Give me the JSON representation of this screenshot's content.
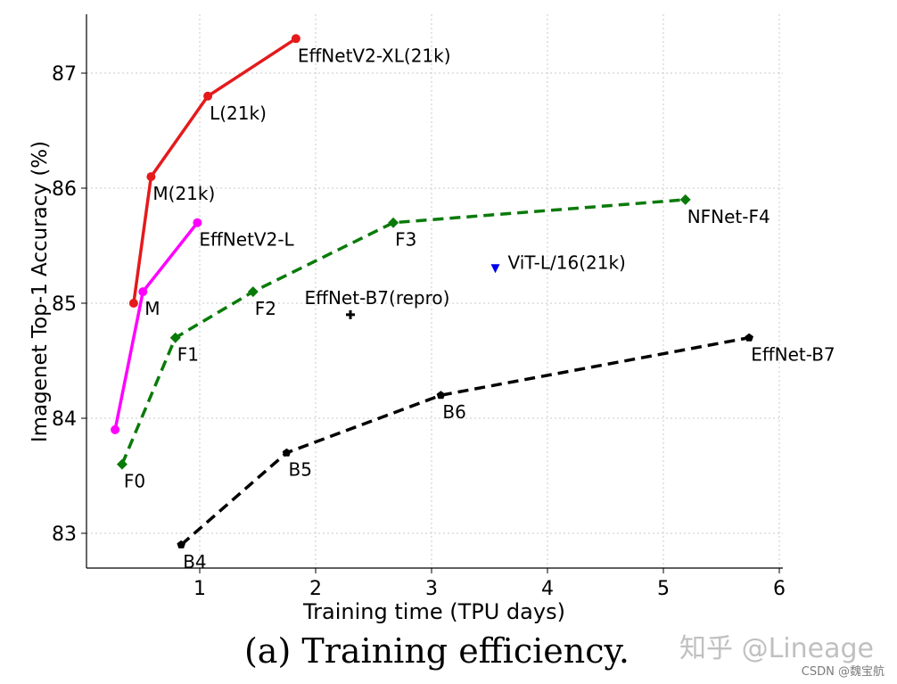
{
  "chart_data": {
    "type": "line",
    "title": "(a) Training efficiency.",
    "xlabel": "Training time (TPU days)",
    "ylabel": "Imagenet Top-1 Accuracy (%)",
    "xlim": [
      0,
      6.05
    ],
    "ylim": [
      82.7,
      87.5
    ],
    "xticks": [
      1,
      2,
      3,
      4,
      5,
      6
    ],
    "yticks": [
      83,
      84,
      85,
      86,
      87
    ],
    "grid": true,
    "series": [
      {
        "name": "EffNetV2-XL(21k)",
        "color": "#e41a1c",
        "dash": "solid",
        "marker": "circle",
        "points": [
          {
            "x": 0.43,
            "y": 85.0
          },
          {
            "x": 0.58,
            "y": 86.1,
            "label": "M(21k)",
            "anchor": "below"
          },
          {
            "x": 1.07,
            "y": 86.8,
            "label": "L(21k)",
            "anchor": "below"
          },
          {
            "x": 1.83,
            "y": 87.3,
            "label": "EffNetV2-XL(21k)",
            "anchor": "below"
          }
        ]
      },
      {
        "name": "EffNetV2-L",
        "color": "#ff00ff",
        "dash": "solid",
        "marker": "circle",
        "points": [
          {
            "x": 0.27,
            "y": 83.9
          },
          {
            "x": 0.51,
            "y": 85.1,
            "label": "M",
            "anchor": "below"
          },
          {
            "x": 0.98,
            "y": 85.7,
            "label": "EffNetV2-L",
            "anchor": "below"
          }
        ]
      },
      {
        "name": "NFNet",
        "color": "#097a09",
        "dash": "dashed",
        "marker": "diamond",
        "points": [
          {
            "x": 0.33,
            "y": 83.6,
            "label": "F0",
            "anchor": "below"
          },
          {
            "x": 0.79,
            "y": 84.7,
            "label": "F1",
            "anchor": "below"
          },
          {
            "x": 1.46,
            "y": 85.1,
            "label": "F2",
            "anchor": "below"
          },
          {
            "x": 2.67,
            "y": 85.7,
            "label": "F3",
            "anchor": "below"
          },
          {
            "x": 5.19,
            "y": 85.9,
            "label": "NFNet-F4",
            "anchor": "below"
          }
        ]
      },
      {
        "name": "EffNet",
        "color": "#000000",
        "dash": "dashed",
        "marker": "pentagon",
        "points": [
          {
            "x": 0.84,
            "y": 82.9,
            "label": "B4",
            "anchor": "below"
          },
          {
            "x": 1.75,
            "y": 83.7,
            "label": "B5",
            "anchor": "below"
          },
          {
            "x": 3.08,
            "y": 84.2,
            "label": "B6",
            "anchor": "below"
          },
          {
            "x": 5.74,
            "y": 84.7,
            "label": "EffNet-B7",
            "anchor": "below"
          }
        ]
      },
      {
        "name": "ViT-L/16(21k)",
        "color": "#0000ee",
        "dash": "none",
        "marker": "triangle-down",
        "points": [
          {
            "x": 3.55,
            "y": 85.3,
            "label": "ViT-L/16(21k)",
            "anchor": "right"
          }
        ]
      },
      {
        "name": "EffNet-B7(repro)",
        "color": "#000000",
        "dash": "none",
        "marker": "plus",
        "points": [
          {
            "x": 2.3,
            "y": 84.9,
            "label": "EffNet-B7(repro)",
            "anchor": "above"
          }
        ]
      }
    ]
  },
  "watermark": {
    "main": "知乎 @Lineage",
    "sub": "CSDN @魏宝航"
  }
}
